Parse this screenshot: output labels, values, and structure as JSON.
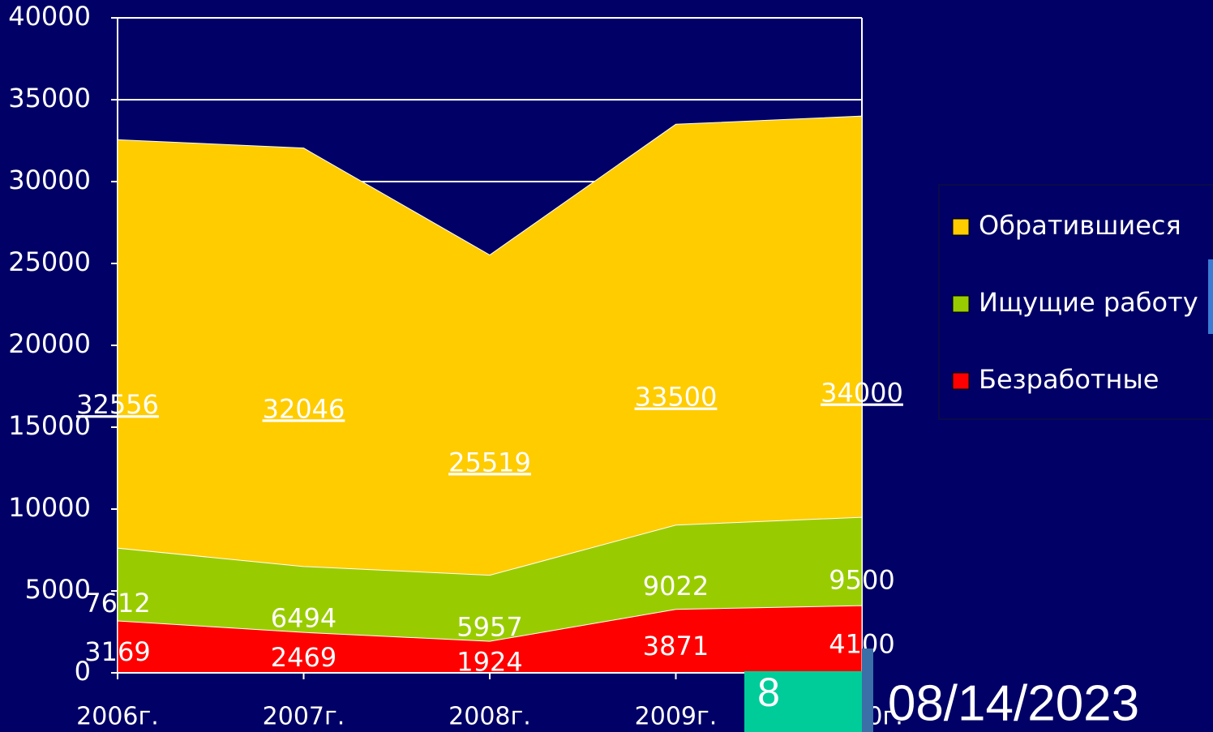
{
  "chart_data": {
    "type": "area",
    "categories": [
      "2006г.",
      "2007г.",
      "2008г.",
      "2009г.",
      "2010г."
    ],
    "series": [
      {
        "name": "Обратившиеся",
        "color": "#ffcc00",
        "values": [
          32556,
          32046,
          25519,
          33500,
          34000
        ]
      },
      {
        "name": "Ищущие работу",
        "color": "#99cc00",
        "values": [
          7612,
          6494,
          5957,
          9022,
          9500
        ]
      },
      {
        "name": "Безработные",
        "color": "#ff0000",
        "values": [
          3169,
          2469,
          1924,
          3871,
          4100
        ]
      }
    ],
    "ylim": [
      0,
      40000
    ],
    "yticks": [
      0,
      5000,
      10000,
      15000,
      20000,
      25000,
      30000,
      35000,
      40000
    ],
    "grid": true,
    "legend": "right"
  },
  "slide_number": "8",
  "date": "08/14/2023"
}
